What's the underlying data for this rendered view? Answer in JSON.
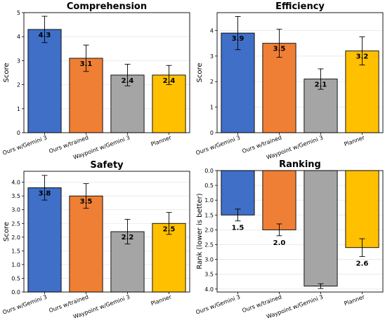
{
  "figure": {
    "categories": [
      "Ours w/Gemini 3",
      "Ours w/trained",
      "Waypoint w/Gemini 3",
      "Planner"
    ],
    "colors": [
      "#3f6fc7",
      "#ef7f35",
      "#a5a5a5",
      "#ffc000"
    ]
  },
  "chart_data": [
    {
      "type": "bar",
      "title": "Comprehension",
      "ylabel": "Score",
      "categories": [
        "Ours w/Gemini 3",
        "Ours w/trained",
        "Waypoint w/Gemini 3",
        "Planner"
      ],
      "values": [
        4.3,
        3.1,
        2.4,
        2.4
      ],
      "value_labels": [
        "4.3",
        "3.1",
        "2.4",
        "2.4"
      ],
      "errors": [
        0.55,
        0.55,
        0.45,
        0.4
      ],
      "ylim": [
        0,
        5
      ],
      "yticks": [
        "0",
        "1",
        "2",
        "3",
        "4",
        "5"
      ],
      "grid": true
    },
    {
      "type": "bar",
      "title": "Efficiency",
      "ylabel": "Score",
      "categories": [
        "Ours w/Gemini 3",
        "Ours w/trained",
        "Waypoint w/Gemini 3",
        "Planner"
      ],
      "values": [
        3.9,
        3.5,
        2.1,
        3.2
      ],
      "value_labels": [
        "3.9",
        "3.5",
        "2.1",
        "3.2"
      ],
      "errors": [
        0.65,
        0.55,
        0.4,
        0.55
      ],
      "ylim": [
        0,
        4.7
      ],
      "yticks": [
        "0",
        "1",
        "2",
        "3",
        "4"
      ],
      "grid": true
    },
    {
      "type": "bar",
      "title": "Safety",
      "ylabel": "Score",
      "categories": [
        "Ours w/Gemini 3",
        "Ours w/trained",
        "Waypoint w/Gemini 3",
        "Planner"
      ],
      "values": [
        3.8,
        3.5,
        2.2,
        2.5
      ],
      "value_labels": [
        "3.8",
        "3.5",
        "2.2",
        "2.5"
      ],
      "errors": [
        0.45,
        0.45,
        0.45,
        0.4
      ],
      "ylim": [
        0,
        4.4
      ],
      "yticks": [
        "0.0",
        "0.5",
        "1.0",
        "1.5",
        "2.0",
        "2.5",
        "3.0",
        "3.5",
        "4.0"
      ],
      "grid": true
    },
    {
      "type": "bar",
      "title": "Ranking",
      "ylabel": "Rank (lower is better)",
      "categories": [
        "Ours w/Gemini 3",
        "Ours w/trained",
        "Waypoint w/Gemini 3",
        "Planner"
      ],
      "values": [
        1.5,
        2.0,
        3.9,
        2.6
      ],
      "value_labels": [
        "1.5",
        "2.0",
        "",
        "2.6"
      ],
      "errors": [
        0.2,
        0.2,
        0.08,
        0.3
      ],
      "ylim": [
        0,
        4.1
      ],
      "inverted_y": true,
      "yticks": [
        "0.0",
        "0.5",
        "1.0",
        "1.5",
        "2.0",
        "2.5",
        "3.0",
        "3.5",
        "4.0"
      ],
      "grid": true
    }
  ]
}
